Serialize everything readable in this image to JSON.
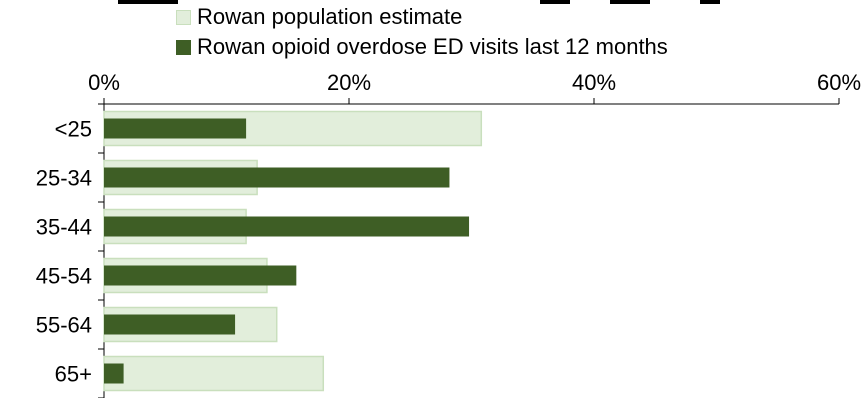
{
  "chart_data": {
    "type": "bar",
    "orientation": "horizontal",
    "title": "",
    "categories": [
      "<25",
      "25-34",
      "35-44",
      "45-54",
      "55-64",
      "65+"
    ],
    "series": [
      {
        "name": "Rowan population estimate",
        "values": [
          30.8,
          12.5,
          11.6,
          13.3,
          14.1,
          17.9
        ],
        "color": "#e2eedb",
        "stroke": "#c9dfbd"
      },
      {
        "name": "Rowan opioid overdose ED visits last 12 months",
        "values": [
          11.6,
          28.2,
          29.8,
          15.7,
          10.7,
          1.6
        ],
        "color": "#3e5e25"
      }
    ],
    "x_axis": {
      "range": [
        0,
        60
      ],
      "ticks": [
        0,
        20,
        40,
        60
      ],
      "tick_labels": [
        "0%",
        "20%",
        "40%",
        "60%"
      ],
      "position": "top"
    },
    "legend": {
      "position": "top"
    },
    "grid": false
  }
}
